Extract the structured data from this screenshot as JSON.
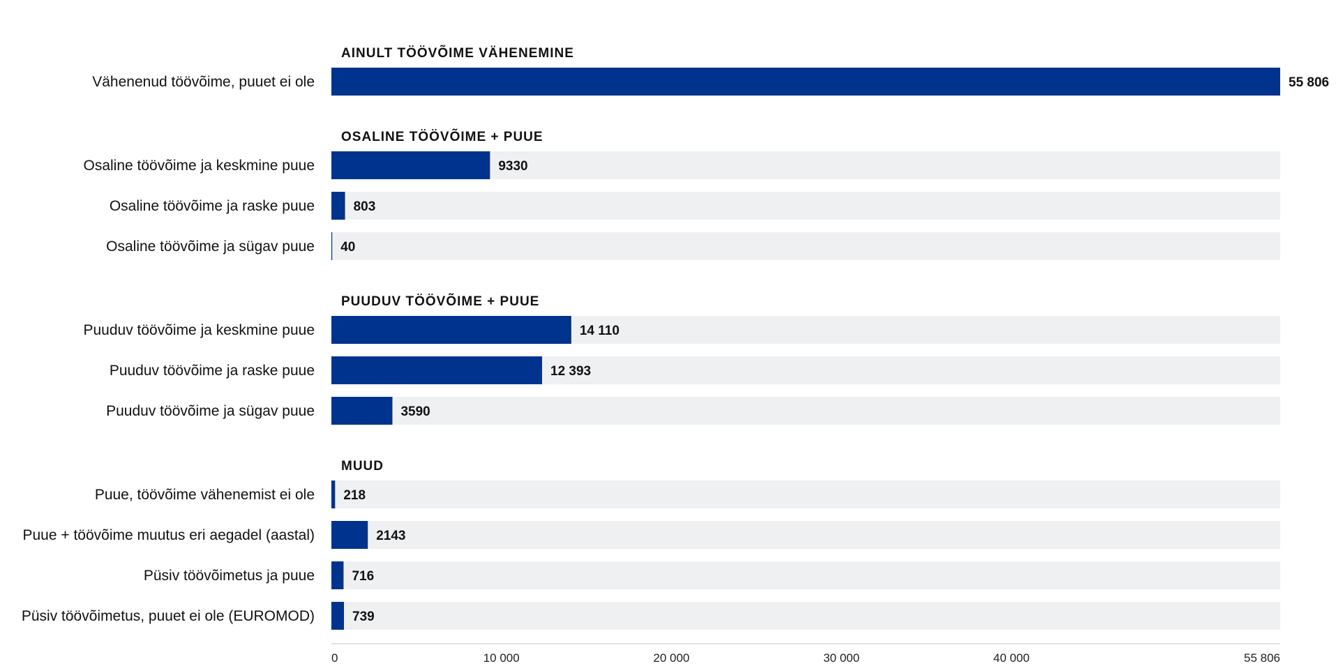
{
  "chart_data": {
    "type": "bar",
    "orientation": "horizontal",
    "colors": {
      "bar": "#00338d",
      "track": "#eff0f2",
      "axis": "#d8d8d8",
      "text": "#111111"
    },
    "xlim": [
      0,
      55806
    ],
    "ticks": [
      {
        "value": 0,
        "label": "0"
      },
      {
        "value": 10000,
        "label": "10 000"
      },
      {
        "value": 20000,
        "label": "20 000"
      },
      {
        "value": 30000,
        "label": "30 000"
      },
      {
        "value": 40000,
        "label": "40 000"
      },
      {
        "value": 55806,
        "label": "55 806"
      }
    ],
    "groups": [
      {
        "title": "AINULT TÖÖVÕIME VÄHENEMINE",
        "rows": [
          {
            "label": "Vähenenud töövõime, puuet ei ole",
            "value": 55806,
            "display": "55 806"
          }
        ]
      },
      {
        "title": "OSALINE TÖÖVÕIME + PUUE",
        "rows": [
          {
            "label": "Osaline töövõime ja keskmine puue",
            "value": 9330,
            "display": "9330"
          },
          {
            "label": "Osaline töövõime ja raske puue",
            "value": 803,
            "display": "803"
          },
          {
            "label": "Osaline töövõime ja sügav puue",
            "value": 40,
            "display": "40"
          }
        ]
      },
      {
        "title": "PUUDUV TÖÖVÕIME + PUUE",
        "rows": [
          {
            "label": "Puuduv töövõime ja keskmine puue",
            "value": 14110,
            "display": "14 110"
          },
          {
            "label": "Puuduv töövõime ja raske puue",
            "value": 12393,
            "display": "12 393"
          },
          {
            "label": "Puuduv töövõime ja sügav puue",
            "value": 3590,
            "display": "3590"
          }
        ]
      },
      {
        "title": "MUUD",
        "rows": [
          {
            "label": "Puue, töövõime vähenemist ei ole",
            "value": 218,
            "display": "218"
          },
          {
            "label": "Puue + töövõime muutus eri aegadel (aastal)",
            "value": 2143,
            "display": "2143"
          },
          {
            "label": "Püsiv töövõimetus ja puue",
            "value": 716,
            "display": "716"
          },
          {
            "label": "Püsiv töövõimetus, puuet ei ole (EUROMOD)",
            "value": 739,
            "display": "739"
          }
        ]
      }
    ],
    "grid": false,
    "legend": "none"
  }
}
